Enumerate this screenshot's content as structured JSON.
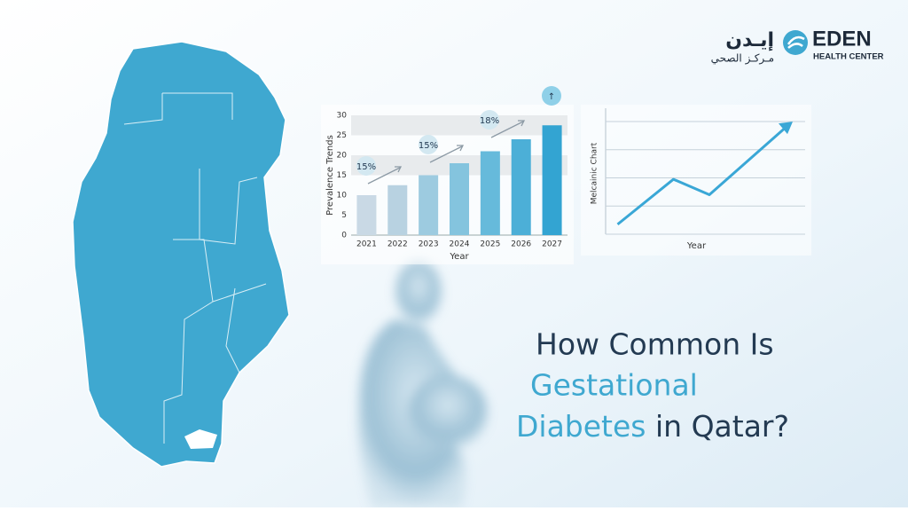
{
  "logo": {
    "arabic_name": "إيـدن",
    "arabic_subtitle": "مـركـز الصحي",
    "name": "EDEN",
    "subtitle": "HEALTH CENTER"
  },
  "headline": {
    "line1": "How Common Is",
    "line2": "Gestational",
    "line3_highlight": "Diabetes",
    "line3_rest": "in Qatar?"
  },
  "chart_data": [
    {
      "type": "bar",
      "y_label": "Prevalence Trends",
      "x_label": "Year",
      "categories": [
        "2021",
        "2022",
        "2023",
        "2024",
        "2025",
        "2026",
        "2027"
      ],
      "values": [
        10,
        12.5,
        15,
        18,
        21,
        24,
        27.5
      ],
      "colors": [
        "#c9d9e5",
        "#b8d2e1",
        "#9dcbe0",
        "#84c4de",
        "#66badb",
        "#4cafd7",
        "#33a4d2"
      ],
      "ylim": [
        0,
        30
      ],
      "yticks": [
        0,
        5,
        10,
        15,
        20,
        25,
        30
      ],
      "bands": [
        [
          25,
          30
        ],
        [
          15,
          20
        ]
      ],
      "annotations": [
        "15%",
        "15%",
        "18%",
        "↑"
      ]
    },
    {
      "type": "line",
      "y_label": "Melcainic Chart",
      "x_label": "Year",
      "x": [
        0.6,
        3.4,
        5.2,
        9.2
      ],
      "values": [
        0.35,
        1.95,
        1.4,
        3.9
      ],
      "color": "#3aa7d6",
      "xlim": [
        0,
        10
      ],
      "ylim": [
        0,
        4
      ],
      "ygrid": [
        0,
        1,
        2,
        3,
        4
      ]
    }
  ]
}
